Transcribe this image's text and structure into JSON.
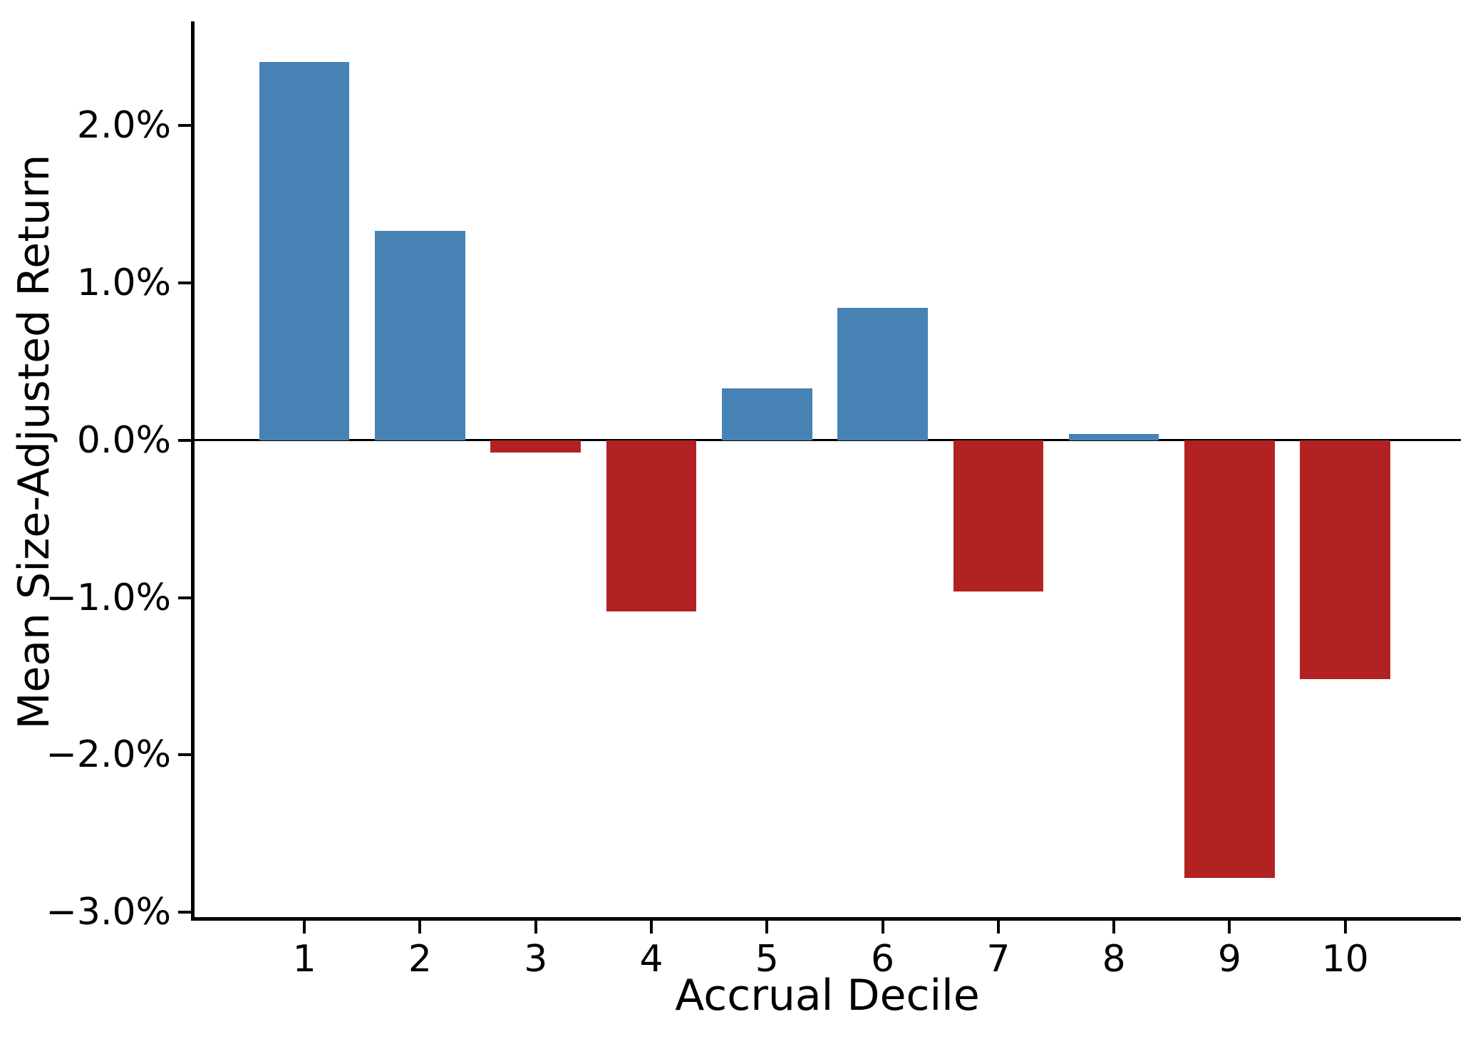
{
  "chart_data": {
    "type": "bar",
    "title": "",
    "xlabel": "Accrual Decile",
    "ylabel": "Mean Size-Adjusted Return",
    "categories": [
      "1",
      "2",
      "3",
      "4",
      "5",
      "6",
      "7",
      "8",
      "9",
      "10"
    ],
    "values": [
      2.4,
      1.33,
      -0.08,
      -1.09,
      0.33,
      0.84,
      -0.96,
      0.04,
      -2.78,
      -1.52
    ],
    "unit": "percent",
    "bar_width_data_units": 0.78,
    "xlim": [
      0.05,
      11.0
    ],
    "ylim": [
      -3.03,
      2.66
    ],
    "yticks": [
      {
        "value": 2.0,
        "label": "2.0%"
      },
      {
        "value": 1.0,
        "label": "1.0%"
      },
      {
        "value": 0.0,
        "label": "0.0%"
      },
      {
        "value": -1.0,
        "label": "−1.0%"
      },
      {
        "value": -2.0,
        "label": "−2.0%"
      },
      {
        "value": -3.0,
        "label": "−3.0%"
      }
    ],
    "grid": false,
    "legend": "none",
    "zero_line": true,
    "colors": {
      "positive": "#4682B4",
      "negative": "#B22222",
      "axis": "#000000",
      "background": "#ffffff"
    }
  }
}
